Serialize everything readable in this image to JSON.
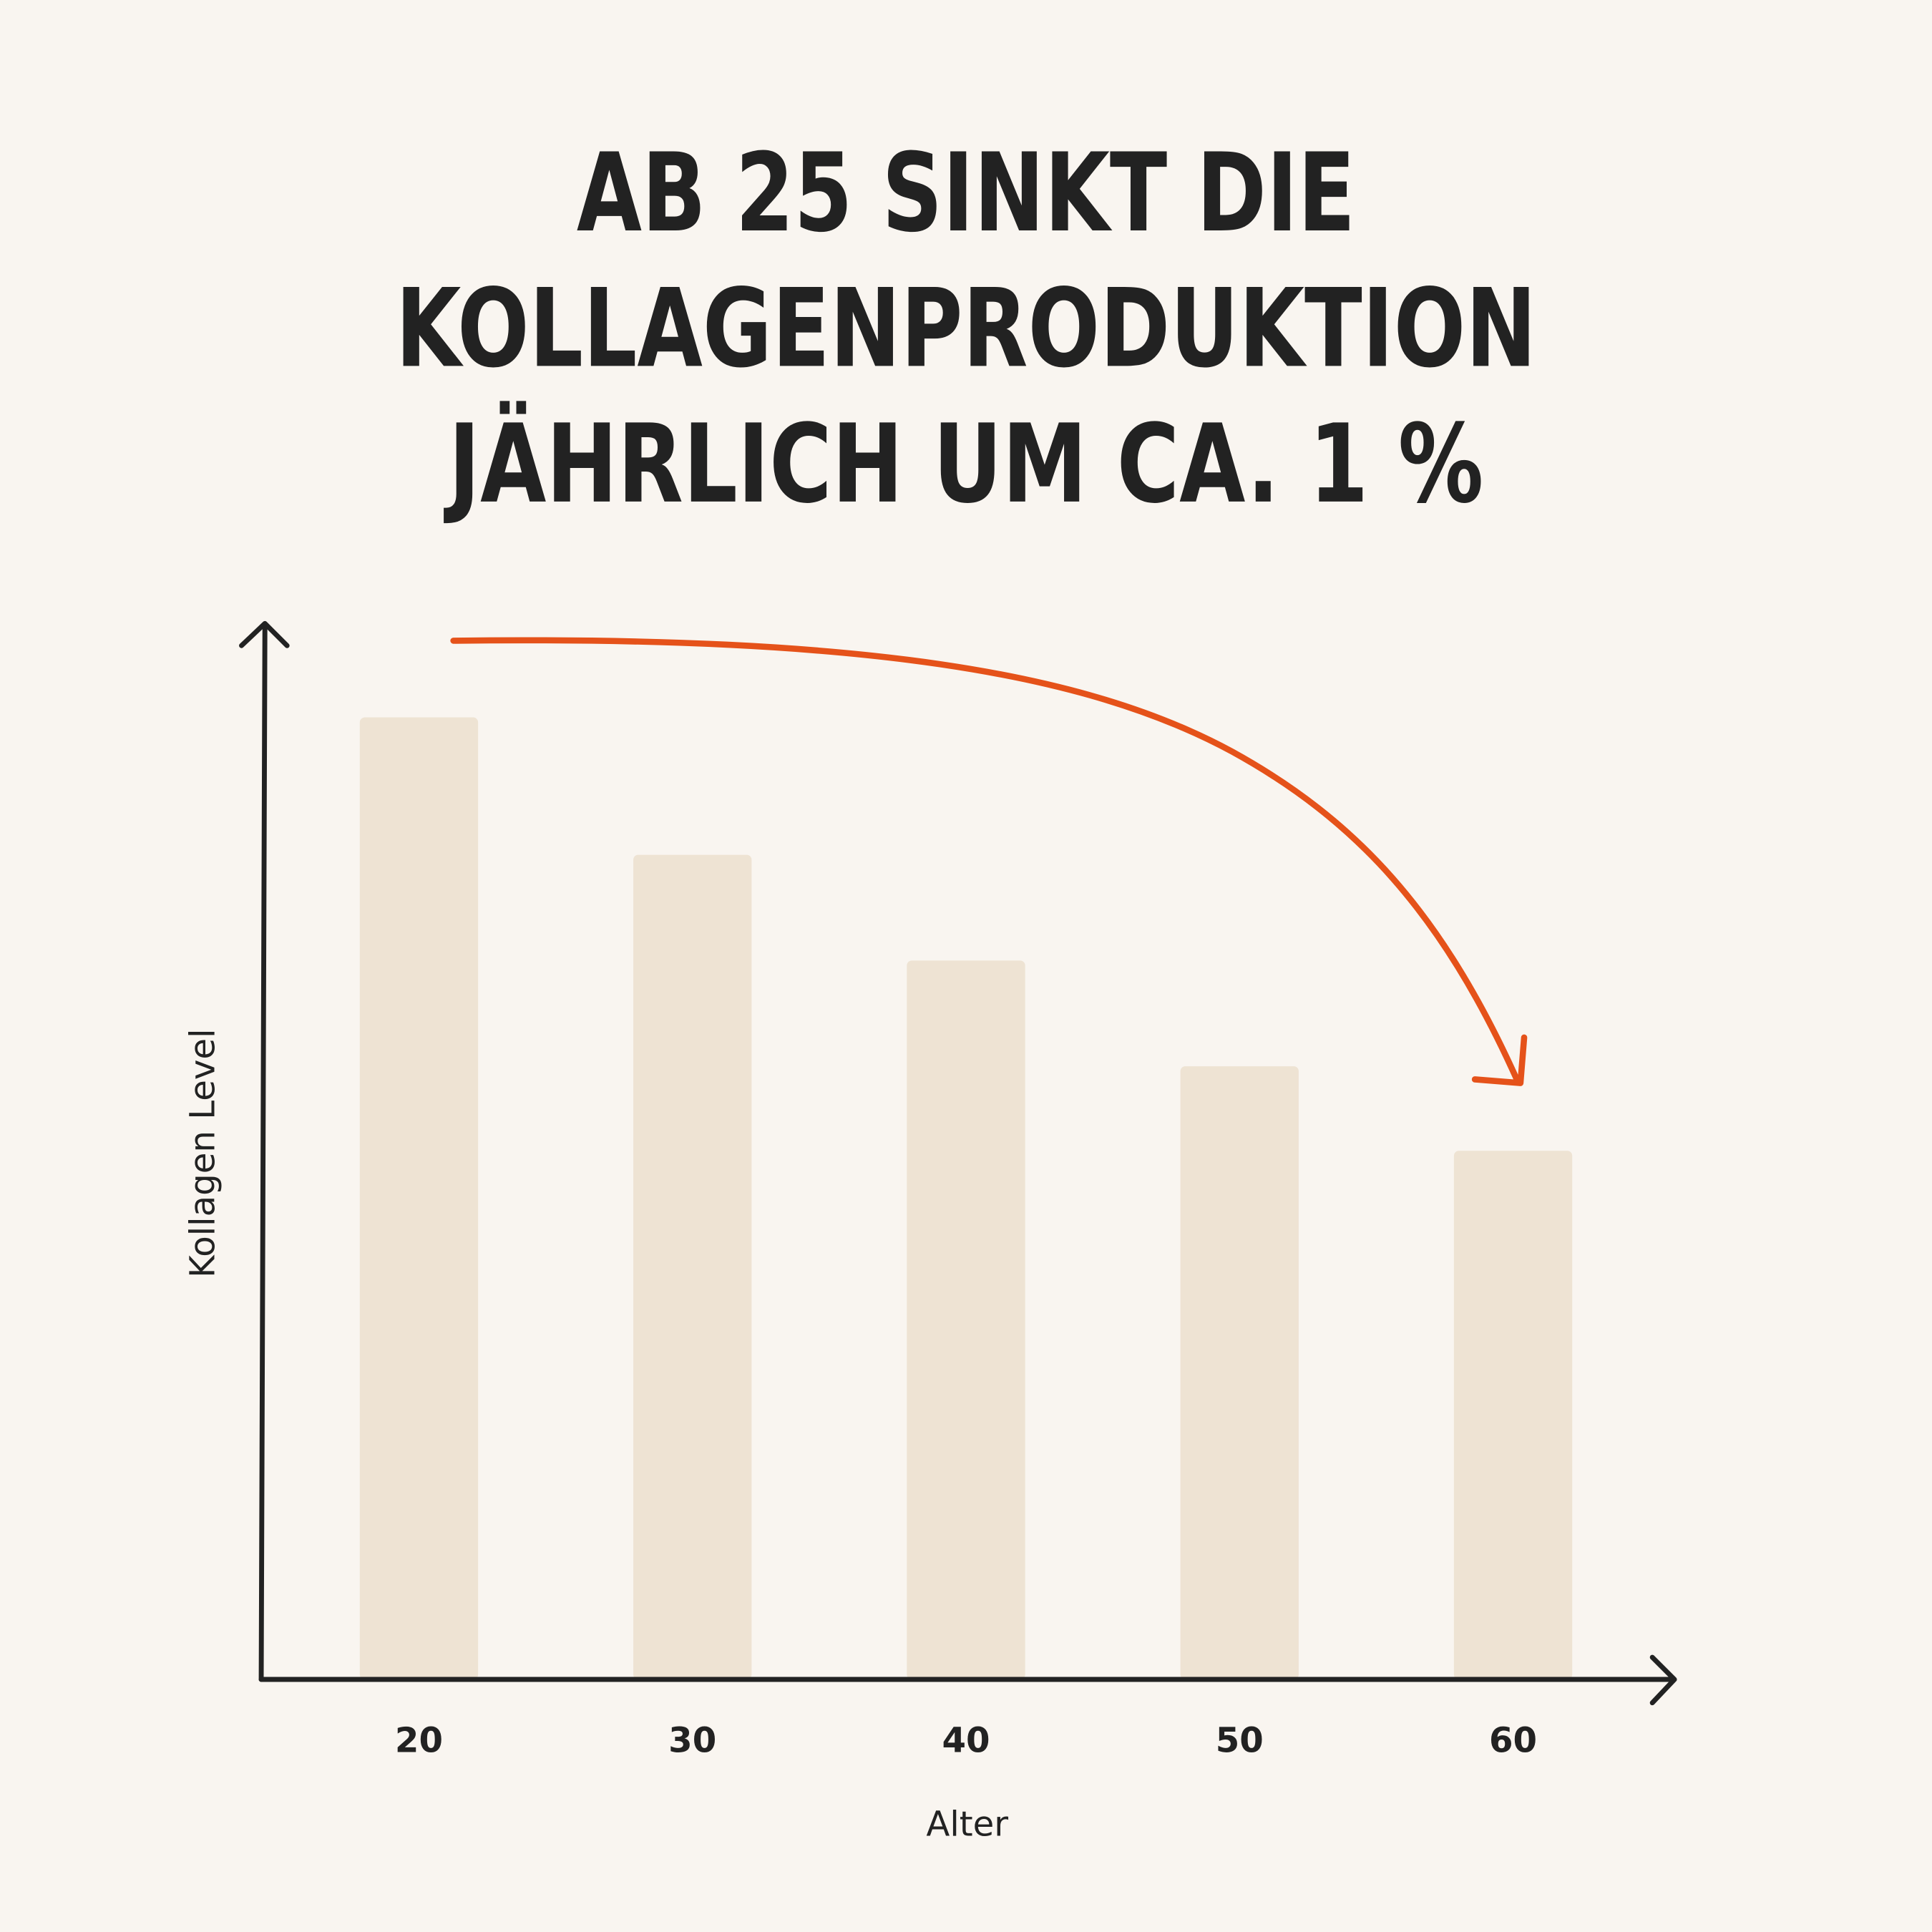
{
  "chart_data": {
    "type": "bar",
    "title_lines": [
      "AB 25 SINKT DIE",
      "KOLLAGENPRODUKTION",
      "JÄHRLICH UM CA. 1 %"
    ],
    "xlabel": "Alter",
    "ylabel": "Kollagen Level",
    "categories": [
      "20",
      "30",
      "40",
      "50",
      "60"
    ],
    "values": [
      91,
      78,
      68,
      58,
      50
    ],
    "ylim": [
      0,
      100
    ],
    "grid": false,
    "annotation": "downward trend arrow",
    "colors": {
      "background": "#f9f5f0",
      "bar": "#eee3d3",
      "arrow": "#e5521a",
      "text": "#222222"
    }
  }
}
